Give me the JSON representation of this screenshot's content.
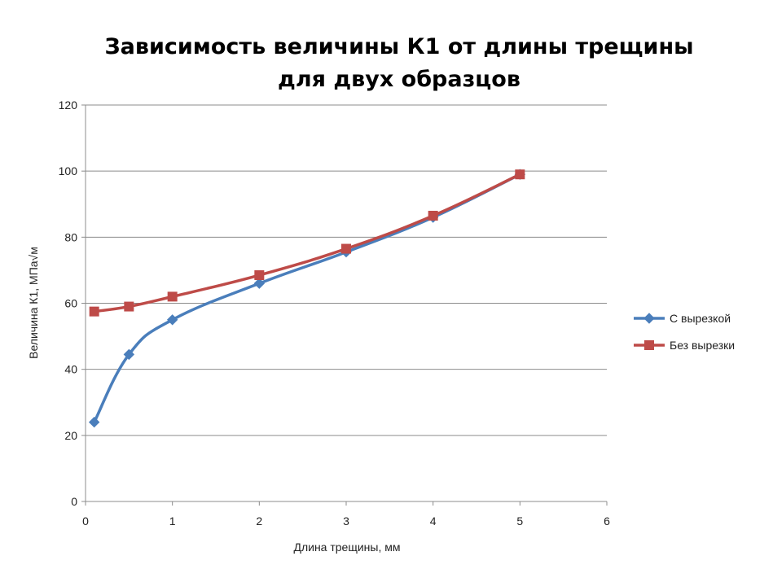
{
  "chart_data": {
    "type": "line",
    "title_lines": [
      "Зависимость величины К1 от длины трещины",
      "для двух образцов"
    ],
    "xlabel": "Длина трещины, мм",
    "ylabel": "Величина К1, МПа√м",
    "xlim": [
      0,
      6
    ],
    "ylim": [
      0,
      120
    ],
    "xticks": [
      0,
      1,
      2,
      3,
      4,
      5,
      6
    ],
    "yticks": [
      0,
      20,
      40,
      60,
      80,
      100,
      120
    ],
    "grid": "horizontal",
    "legend_position": "right",
    "series": [
      {
        "name": "С вырезкой",
        "color": "#4a7ebb",
        "marker": "diamond",
        "smooth": true,
        "x": [
          0.1,
          0.5,
          1,
          2,
          3,
          4,
          5
        ],
        "y": [
          24,
          44.5,
          55,
          66,
          75.5,
          86,
          99
        ]
      },
      {
        "name": "Без вырезки",
        "color": "#be4b48",
        "marker": "square",
        "smooth": true,
        "x": [
          0.1,
          0.5,
          1,
          2,
          3,
          4,
          5
        ],
        "y": [
          57.5,
          59,
          62,
          68.5,
          76.5,
          86.5,
          99
        ]
      }
    ]
  }
}
